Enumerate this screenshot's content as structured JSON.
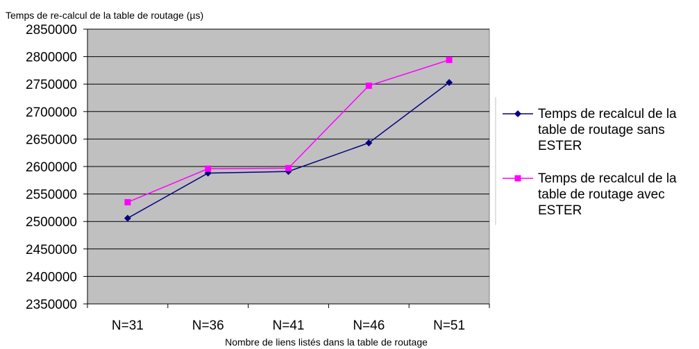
{
  "chart_data": {
    "type": "line",
    "title": "Temps de re-calcul de la table de routage (µs)",
    "xlabel": "Nombre de liens listés dans la table de routage",
    "ylabel": "",
    "categories": [
      "N=31",
      "N=36",
      "N=41",
      "N=46",
      "N=51"
    ],
    "ylim": [
      2350000,
      2850000
    ],
    "ytick_step": 50000,
    "grid": true,
    "plot_background": "#c0c0c0",
    "legend_position": "right",
    "series": [
      {
        "name": "Temps de recalcul de la table de routage sans ESTER",
        "legend_lines": [
          "Temps de recalcul de la",
          "table de routage sans",
          "ESTER"
        ],
        "values": [
          2506000,
          2588000,
          2591000,
          2643000,
          2753000
        ],
        "color": "#000080",
        "marker": "diamond"
      },
      {
        "name": "Temps de recalcul de la table de routage avec ESTER",
        "legend_lines": [
          "Temps de recalcul de la",
          "table de routage avec",
          "ESTER"
        ],
        "values": [
          2535000,
          2596000,
          2597000,
          2747000,
          2794000
        ],
        "color": "#ff00ff",
        "marker": "square"
      }
    ]
  }
}
